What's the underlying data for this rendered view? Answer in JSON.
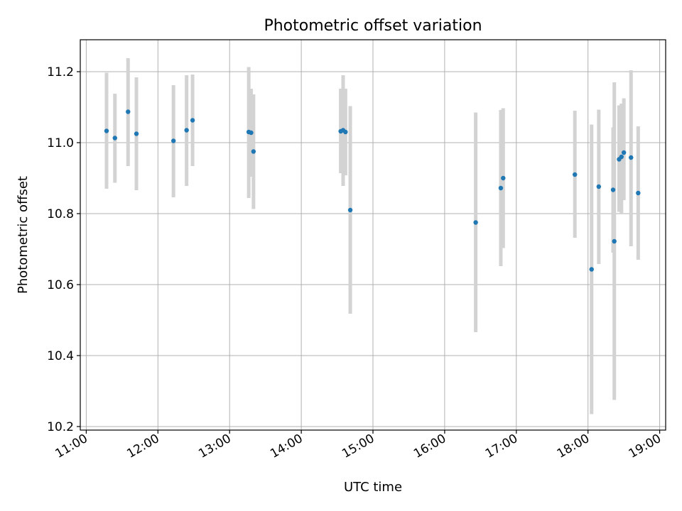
{
  "chart_data": {
    "type": "scatter",
    "title": "Photometric offset variation",
    "xlabel": "UTC time",
    "ylabel": "Photometric offset",
    "x_ticks": [
      "11:00",
      "12:00",
      "13:00",
      "14:00",
      "15:00",
      "16:00",
      "17:00",
      "18:00",
      "19:00"
    ],
    "y_ticks": [
      "10.2",
      "10.4",
      "10.6",
      "10.8",
      "11.0",
      "11.2"
    ],
    "xlim": [
      "10:55",
      "19:05"
    ],
    "ylim": [
      10.19,
      11.29
    ],
    "grid": true,
    "colors": {
      "marker": "#1f77b4",
      "errorbar": "#d3d3d3",
      "grid": "#b0b0b0",
      "axis": "#000000"
    },
    "points": [
      {
        "time": "11:17",
        "value": 11.033,
        "err_low": 10.87,
        "err_high": 11.197
      },
      {
        "time": "11:24",
        "value": 11.013,
        "err_low": 10.887,
        "err_high": 11.138
      },
      {
        "time": "11:35",
        "value": 11.087,
        "err_low": 10.934,
        "err_high": 11.238
      },
      {
        "time": "11:42",
        "value": 11.025,
        "err_low": 10.866,
        "err_high": 11.184
      },
      {
        "time": "12:13",
        "value": 11.005,
        "err_low": 10.846,
        "err_high": 11.162
      },
      {
        "time": "12:24",
        "value": 11.035,
        "err_low": 10.878,
        "err_high": 11.19
      },
      {
        "time": "12:29",
        "value": 11.063,
        "err_low": 10.934,
        "err_high": 11.192
      },
      {
        "time": "13:16",
        "value": 11.03,
        "err_low": 10.844,
        "err_high": 11.213
      },
      {
        "time": "13:18",
        "value": 11.028,
        "err_low": 10.904,
        "err_high": 11.152
      },
      {
        "time": "13:20",
        "value": 10.975,
        "err_low": 10.813,
        "err_high": 11.136
      },
      {
        "time": "14:33",
        "value": 11.032,
        "err_low": 10.914,
        "err_high": 11.152
      },
      {
        "time": "14:35",
        "value": 11.035,
        "err_low": 10.878,
        "err_high": 11.19
      },
      {
        "time": "14:37",
        "value": 11.03,
        "err_low": 10.908,
        "err_high": 11.152
      },
      {
        "time": "14:41",
        "value": 10.81,
        "err_low": 10.518,
        "err_high": 11.103
      },
      {
        "time": "16:26",
        "value": 10.775,
        "err_low": 10.466,
        "err_high": 11.085
      },
      {
        "time": "16:47",
        "value": 10.872,
        "err_low": 10.652,
        "err_high": 11.092
      },
      {
        "time": "16:49",
        "value": 10.9,
        "err_low": 10.703,
        "err_high": 11.097
      },
      {
        "time": "17:49",
        "value": 10.91,
        "err_low": 10.732,
        "err_high": 11.09
      },
      {
        "time": "18:03",
        "value": 10.643,
        "err_low": 10.235,
        "err_high": 11.051
      },
      {
        "time": "18:09",
        "value": 10.876,
        "err_low": 10.658,
        "err_high": 11.093
      },
      {
        "time": "18:21",
        "value": 10.867,
        "err_low": 10.69,
        "err_high": 11.043
      },
      {
        "time": "18:22",
        "value": 10.722,
        "err_low": 10.275,
        "err_high": 11.17
      },
      {
        "time": "18:26",
        "value": 10.953,
        "err_low": 10.805,
        "err_high": 11.105
      },
      {
        "time": "18:28",
        "value": 10.96,
        "err_low": 10.8,
        "err_high": 11.11
      },
      {
        "time": "18:30",
        "value": 10.972,
        "err_low": 10.838,
        "err_high": 11.125
      },
      {
        "time": "18:36",
        "value": 10.958,
        "err_low": 10.708,
        "err_high": 11.204
      },
      {
        "time": "18:42",
        "value": 10.858,
        "err_low": 10.67,
        "err_high": 11.046
      }
    ]
  }
}
